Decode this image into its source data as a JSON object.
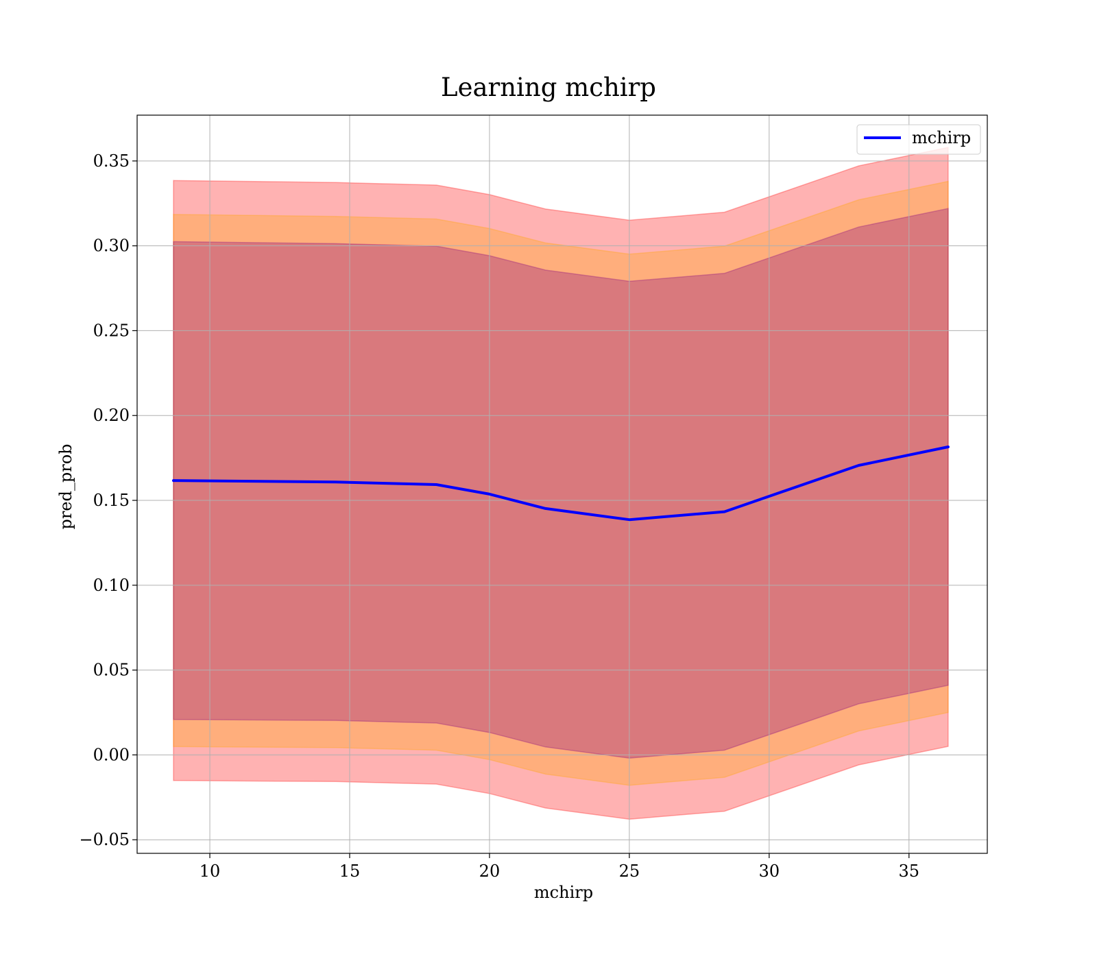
{
  "chart_data": {
    "type": "area",
    "title": "Learning mchirp",
    "xlabel": "mchirp",
    "ylabel": "pred_prob",
    "xlim": [
      7.4,
      37.8
    ],
    "ylim": [
      -0.058,
      0.377
    ],
    "xticks": [
      10,
      15,
      20,
      25,
      30,
      35
    ],
    "xtick_labels": [
      "10",
      "15",
      "20",
      "25",
      "30",
      "35"
    ],
    "yticks": [
      -0.05,
      0.0,
      0.05,
      0.1,
      0.15,
      0.2,
      0.25,
      0.3,
      0.35
    ],
    "ytick_labels": [
      "−0.05",
      "0.00",
      "0.05",
      "0.10",
      "0.15",
      "0.20",
      "0.25",
      "0.30",
      "0.35"
    ],
    "grid": true,
    "legend_position": "top-right",
    "x": [
      8.7,
      14.5,
      18.1,
      20.0,
      22.0,
      25.0,
      28.4,
      33.2,
      36.4
    ],
    "series": [
      {
        "name": "mchirp",
        "color": "#0000ff",
        "values": [
          0.1617,
          0.1608,
          0.1593,
          0.1537,
          0.1452,
          0.1386,
          0.1433,
          0.1706,
          0.1815
        ]
      }
    ],
    "bands": [
      {
        "color": "#ff0000",
        "opacity": 0.3,
        "upper": [
          0.3385,
          0.3373,
          0.3358,
          0.3302,
          0.3217,
          0.3151,
          0.3198,
          0.3471,
          0.358
        ],
        "lower": [
          -0.0151,
          -0.0157,
          -0.0172,
          -0.0228,
          -0.0313,
          -0.0379,
          -0.0332,
          -0.0059,
          0.005
        ]
      },
      {
        "color": "#ffa500",
        "opacity": 0.3,
        "upper": [
          0.3185,
          0.3173,
          0.3158,
          0.3102,
          0.3017,
          0.2951,
          0.2998,
          0.3271,
          0.338
        ],
        "lower": [
          0.0049,
          0.0043,
          0.0028,
          -0.0028,
          -0.0113,
          -0.0179,
          -0.0132,
          0.0141,
          0.025
        ]
      },
      {
        "color": "#800080",
        "opacity": 0.3,
        "upper": [
          0.3025,
          0.3013,
          0.2998,
          0.2942,
          0.2857,
          0.2791,
          0.2838,
          0.3111,
          0.322
        ],
        "lower": [
          0.0209,
          0.0203,
          0.0188,
          0.0132,
          0.0047,
          -0.0019,
          0.0028,
          0.0301,
          0.041
        ]
      }
    ]
  }
}
